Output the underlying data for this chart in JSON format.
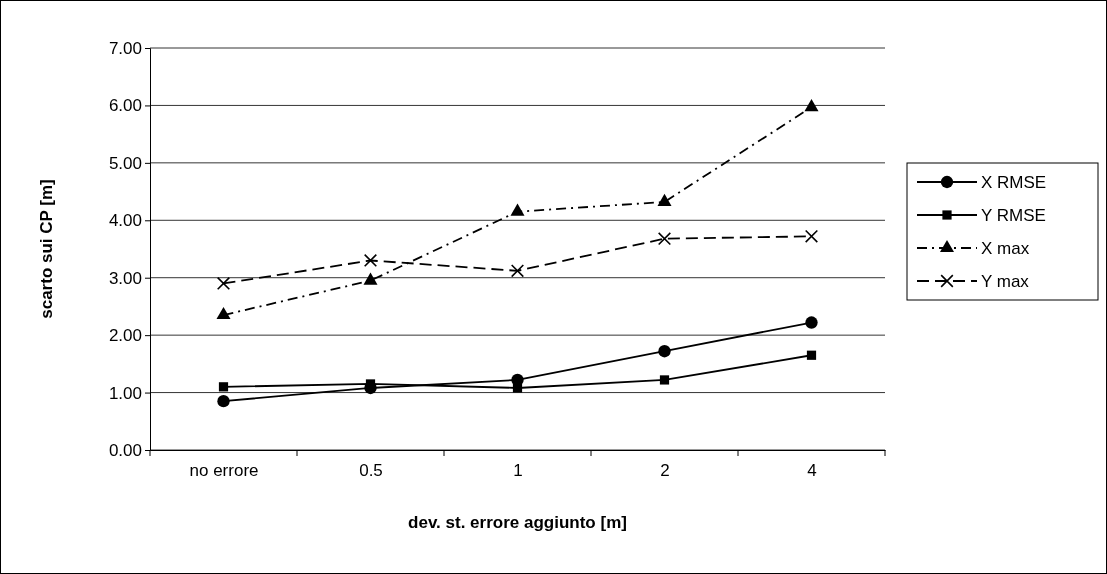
{
  "chart_data": {
    "type": "line",
    "xlabel": "dev. st. errore aggiunto [m]",
    "ylabel": "scarto sui CP [m]",
    "categories": [
      "no errore",
      "0.5",
      "1",
      "2",
      "4"
    ],
    "ylim": [
      0,
      7
    ],
    "yticks": [
      {
        "value": 0,
        "label": "0.00"
      },
      {
        "value": 1,
        "label": "1.00"
      },
      {
        "value": 2,
        "label": "2.00"
      },
      {
        "value": 3,
        "label": "3.00"
      },
      {
        "value": 4,
        "label": "4.00"
      },
      {
        "value": 5,
        "label": "5.00"
      },
      {
        "value": 6,
        "label": "6.00"
      },
      {
        "value": 7,
        "label": "7.00"
      }
    ],
    "grid": "y",
    "legend": "right",
    "series": [
      {
        "name": "X RMSE",
        "color": "#000000",
        "marker": "circle",
        "line_style": "solid",
        "values": [
          0.85,
          1.08,
          1.22,
          1.72,
          2.22
        ]
      },
      {
        "name": "Y RMSE",
        "color": "#000000",
        "marker": "square",
        "line_style": "solid",
        "values": [
          1.1,
          1.15,
          1.08,
          1.22,
          1.65
        ]
      },
      {
        "name": "X max",
        "color": "#000000",
        "marker": "triangle",
        "line_style": "dotted",
        "values": [
          2.35,
          2.95,
          4.15,
          4.32,
          5.97
        ]
      },
      {
        "name": "Y max",
        "color": "#000000",
        "marker": "cross",
        "line_style": "dashed",
        "values": [
          2.9,
          3.3,
          3.12,
          3.68,
          3.72
        ]
      }
    ]
  }
}
